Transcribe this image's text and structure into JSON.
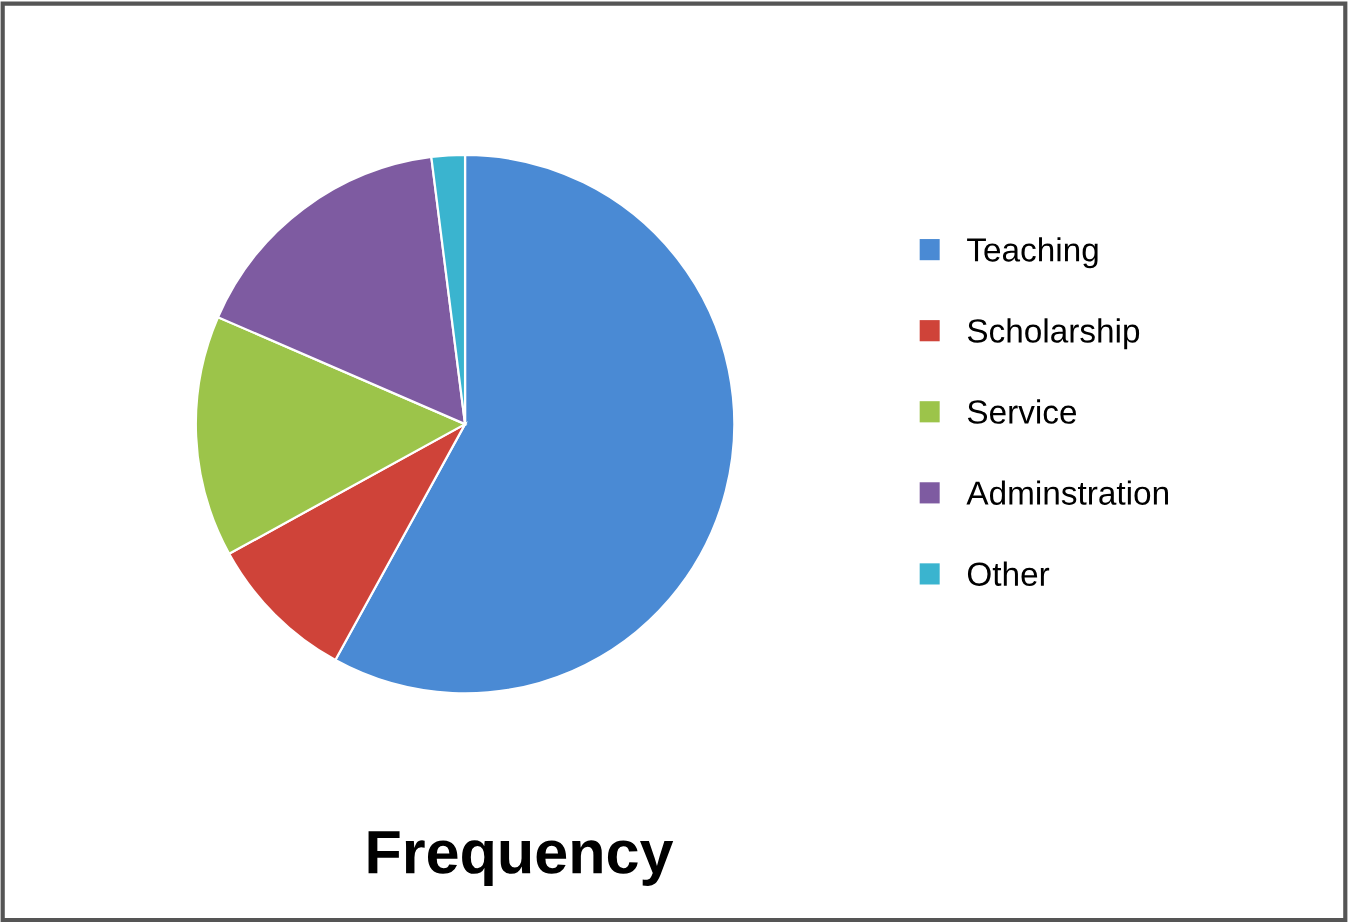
{
  "chart_data": {
    "type": "pie",
    "title": "Frequency",
    "categories": [
      "Teaching",
      "Scholarship",
      "Service",
      "Adminstration",
      "Other"
    ],
    "values": [
      58,
      9,
      14.5,
      16.5,
      2
    ],
    "colors": [
      "#4a8ad4",
      "#cf4339",
      "#9cc44a",
      "#7e5ba1",
      "#3ab4cf"
    ],
    "legend": "right"
  }
}
